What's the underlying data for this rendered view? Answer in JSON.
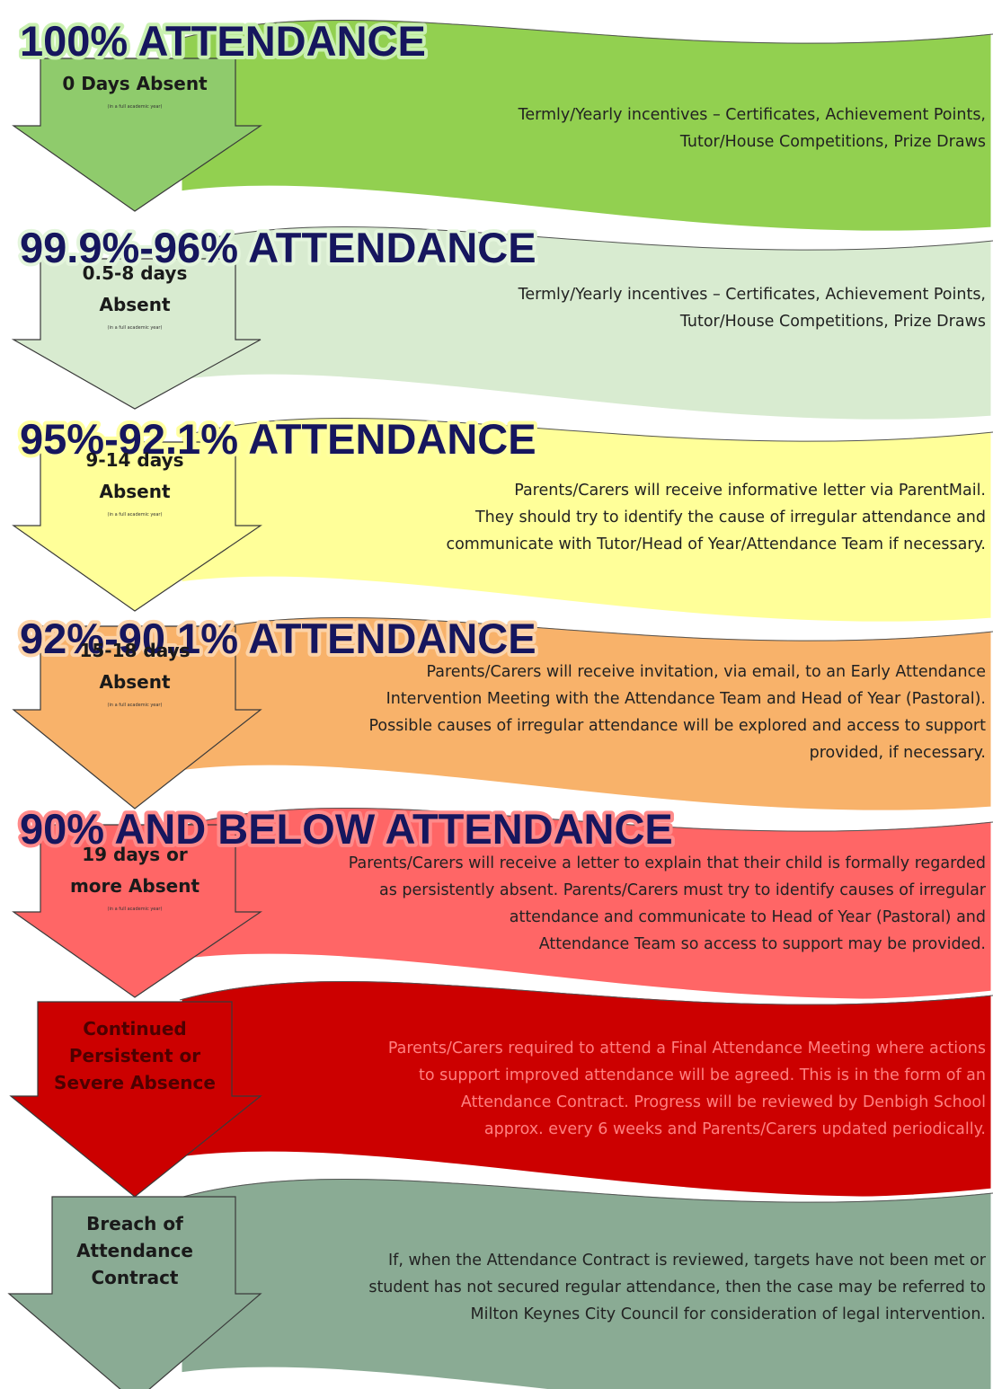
{
  "levels": [
    {
      "title": "100% ATTENDANCE",
      "days": [
        "0 Days Absent"
      ],
      "note": "(in a full academic year)",
      "description": [
        "Termly/Yearly incentives – Certificates, Achievement Points,",
        "Tutor/House Competitions, Prize Draws"
      ]
    },
    {
      "title": "99.9%-96% ATTENDANCE",
      "days": [
        "0.5-8 days",
        "Absent"
      ],
      "note": "(in a full academic year)",
      "description": [
        "Termly/Yearly incentives – Certificates, Achievement Points,",
        "Tutor/House Competitions, Prize Draws"
      ]
    },
    {
      "title": "95%-92.1% ATTENDANCE",
      "days": [
        "9-14 days",
        "Absent"
      ],
      "note": "(in a full academic year)",
      "description": [
        "Parents/Carers will receive informative letter via ParentMail.",
        "They should try to identify the cause of irregular attendance and",
        "communicate with Tutor/Head of Year/Attendance Team if necessary."
      ]
    },
    {
      "title": "92%-90.1% ATTENDANCE",
      "days": [
        "15-18 days",
        "Absent"
      ],
      "note": "(in a full academic year)",
      "description": [
        "Parents/Carers will receive invitation, via email, to an Early Attendance",
        "Intervention Meeting with the Attendance Team and Head of Year (Pastoral).",
        "Possible causes of irregular attendance will be explored and access to support",
        "provided, if necessary."
      ]
    },
    {
      "title": "90% AND BELOW ATTENDANCE",
      "days": [
        "19 days or",
        "more Absent"
      ],
      "note": "(in a full academic year)",
      "description": [
        "Parents/Carers will receive a letter to explain that their child is formally regarded",
        "as persistently absent. Parents/Carers must try to identify causes of irregular",
        "attendance and communicate to Head of Year (Pastoral) and",
        "Attendance Team so access to support may be provided."
      ]
    },
    {
      "days": [
        "Continued",
        "Persistent  or",
        "Severe Absence"
      ],
      "description": [
        "Parents/Carers required to attend a Final Attendance Meeting where actions",
        "to support improved attendance will be agreed. This is in the form of an",
        "Attendance Contract. Progress will be reviewed by Denbigh School",
        "approx. every 6 weeks and Parents/Carers updated periodically."
      ]
    },
    {
      "days": [
        "Breach of",
        "Attendance",
        "Contract"
      ],
      "description": [
        "If, when the Attendance Contract is reviewed, targets have not been met or",
        "student has not secured regular attendance, then the case may be referred to",
        "Milton Keynes City Council for consideration of legal intervention."
      ]
    }
  ]
}
